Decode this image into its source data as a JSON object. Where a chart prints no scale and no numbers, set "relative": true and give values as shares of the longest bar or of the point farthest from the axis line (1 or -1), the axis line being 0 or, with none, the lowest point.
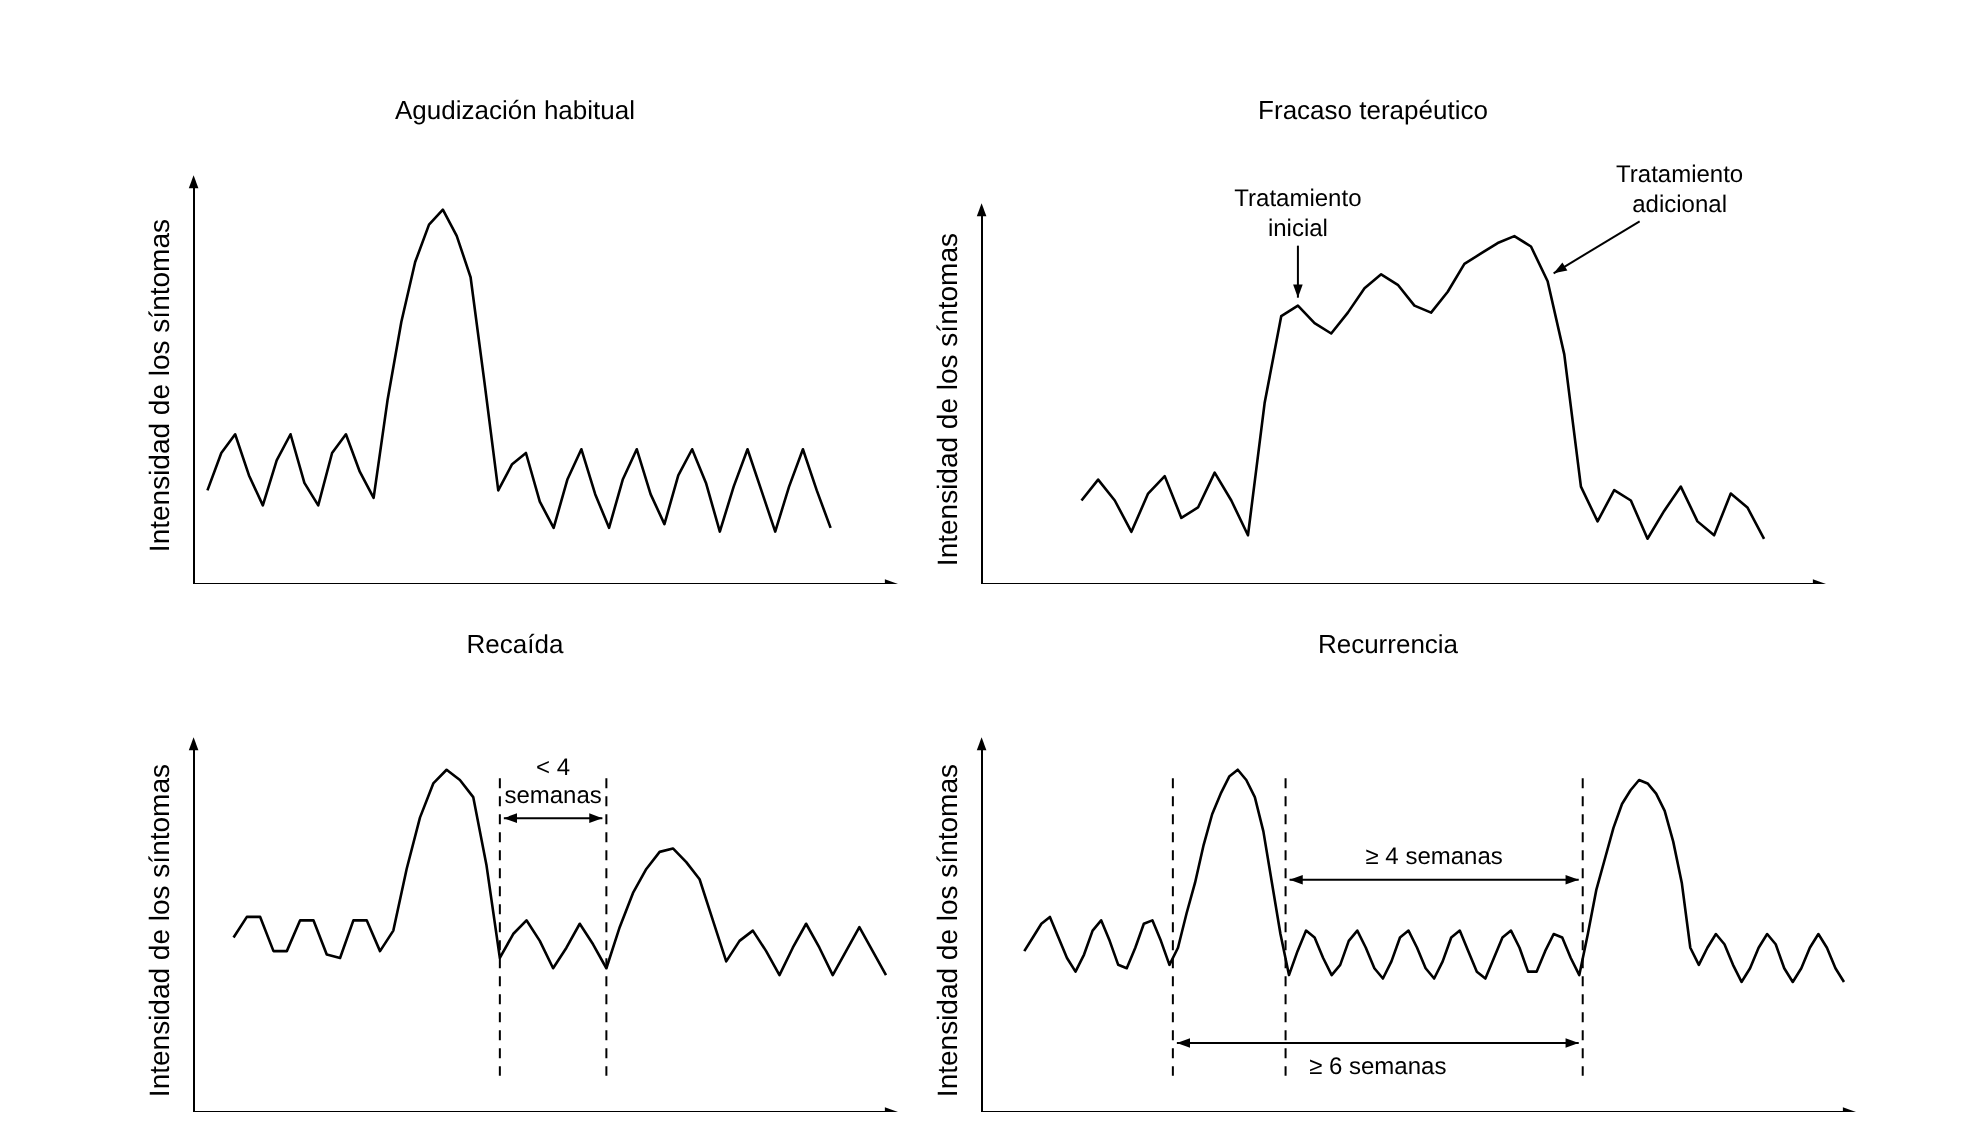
{
  "chart_data": [
    {
      "type": "line",
      "title": "Agudización habitual",
      "ylabel": "Intensidad de los síntomas",
      "relative": true,
      "tick_labels": false,
      "legend": false,
      "grid": false,
      "categories": [
        null,
        null,
        null,
        null,
        null,
        null,
        null,
        null,
        null,
        null,
        null,
        null,
        null,
        null,
        null,
        null,
        null,
        null,
        null,
        null,
        null,
        null,
        null,
        null,
        null,
        null,
        null,
        null,
        null,
        null,
        null,
        null,
        null,
        null,
        null,
        null,
        null,
        null,
        null,
        null,
        null,
        null,
        null,
        null,
        null,
        null,
        null,
        null,
        null,
        null,
        null
      ],
      "series": [
        {
          "color": "#000000",
          "values": [
            null,
            0.25,
            0.35,
            0.4,
            0.29,
            0.21,
            0.33,
            0.4,
            0.27,
            0.21,
            0.35,
            0.4,
            0.3,
            0.23,
            0.49,
            0.7,
            0.86,
            0.96,
            1,
            0.93,
            0.82,
            0.54,
            0.25,
            0.32,
            0.35,
            0.22,
            0.15,
            0.28,
            0.36,
            0.24,
            0.15,
            0.28,
            0.36,
            0.24,
            0.16,
            0.29,
            0.36,
            0.27,
            0.14,
            0.26,
            0.36,
            0.25,
            0.14,
            0.26,
            0.36,
            0.25,
            0.15,
            null,
            null,
            null,
            null
          ]
        }
      ]
    },
    {
      "type": "line",
      "title": "Fracaso terapéutico",
      "ylabel": "Intensidad de los síntomas",
      "relative": true,
      "tick_labels": false,
      "legend": false,
      "grid": false,
      "categories": [
        null,
        null,
        null,
        null,
        null,
        null,
        null,
        null,
        null,
        null,
        null,
        null,
        null,
        null,
        null,
        null,
        null,
        null,
        null,
        null,
        null,
        null,
        null,
        null,
        null,
        null,
        null,
        null,
        null,
        null,
        null,
        null,
        null,
        null,
        null,
        null,
        null,
        null,
        null,
        null,
        null,
        null,
        null,
        null,
        null,
        null,
        null,
        null,
        null,
        null,
        null
      ],
      "series": [
        {
          "color": "#000000",
          "values": [
            null,
            null,
            null,
            null,
            null,
            null,
            0.24,
            0.3,
            0.24,
            0.15,
            0.26,
            0.31,
            0.19,
            0.22,
            0.32,
            0.24,
            0.14,
            0.52,
            0.77,
            0.8,
            0.75,
            0.72,
            0.78,
            0.85,
            0.89,
            0.86,
            0.8,
            0.78,
            0.84,
            0.92,
            0.95,
            0.98,
            1,
            0.97,
            0.87,
            0.66,
            0.28,
            0.18,
            0.27,
            0.24,
            0.13,
            0.21,
            0.28,
            0.18,
            0.14,
            0.26,
            0.22,
            0.13,
            null,
            null,
            null
          ]
        }
      ],
      "annotations": [
        "Tratamiento inicial",
        "Tratamiento adicional"
      ]
    },
    {
      "type": "line",
      "title": "Recaída",
      "ylabel": "Intensidad de los síntomas",
      "relative": true,
      "tick_labels": false,
      "legend": false,
      "grid": false,
      "categories": [
        null,
        null,
        null,
        null,
        null,
        null,
        null,
        null,
        null,
        null,
        null,
        null,
        null,
        null,
        null,
        null,
        null,
        null,
        null,
        null,
        null,
        null,
        null,
        null,
        null,
        null,
        null,
        null,
        null,
        null,
        null,
        null,
        null,
        null,
        null,
        null,
        null,
        null,
        null,
        null,
        null,
        null,
        null,
        null,
        null,
        null,
        null,
        null,
        null,
        null,
        null,
        null,
        null
      ],
      "series": [
        {
          "color": "#000000",
          "values": [
            null,
            null,
            null,
            0.51,
            0.57,
            0.57,
            0.47,
            0.47,
            0.56,
            0.56,
            0.46,
            0.45,
            0.56,
            0.56,
            0.47,
            0.53,
            0.71,
            0.86,
            0.96,
            1,
            0.97,
            0.92,
            0.72,
            0.45,
            0.52,
            0.56,
            0.5,
            0.42,
            0.48,
            0.55,
            0.49,
            0.42,
            0.54,
            0.64,
            0.71,
            0.76,
            0.77,
            0.73,
            0.68,
            0.56,
            0.44,
            0.5,
            0.53,
            0.47,
            0.4,
            0.48,
            0.55,
            0.48,
            0.4,
            0.47,
            0.54,
            0.47,
            0.4
          ]
        }
      ],
      "annotations": [
        "< 4 semanas"
      ]
    },
    {
      "type": "line",
      "title": "Recurrencia",
      "ylabel": "Intensidad de los síntomas",
      "relative": true,
      "tick_labels": false,
      "legend": false,
      "grid": false,
      "categories": [
        null,
        null,
        null,
        null,
        null,
        null,
        null,
        null,
        null,
        null,
        null,
        null,
        null,
        null,
        null,
        null,
        null,
        null,
        null,
        null,
        null,
        null,
        null,
        null,
        null,
        null,
        null,
        null,
        null,
        null,
        null,
        null,
        null,
        null,
        null,
        null,
        null,
        null,
        null,
        null,
        null,
        null,
        null,
        null,
        null,
        null,
        null,
        null,
        null,
        null,
        null,
        null,
        null,
        null,
        null,
        null,
        null,
        null,
        null,
        null,
        null,
        null,
        null,
        null,
        null,
        null,
        null,
        null,
        null,
        null,
        null,
        null,
        null,
        null,
        null,
        null,
        null,
        null,
        null,
        null,
        null,
        null,
        null,
        null,
        null,
        null,
        null,
        null,
        null,
        null,
        null,
        null,
        null,
        null,
        null,
        null,
        null,
        null,
        null,
        null,
        null,
        null
      ],
      "series": [
        {
          "color": "#000000",
          "values": [
            null,
            null,
            null,
            null,
            null,
            0.47,
            0.51,
            0.55,
            0.57,
            0.51,
            0.45,
            0.41,
            0.46,
            0.53,
            0.56,
            0.5,
            0.43,
            0.42,
            0.48,
            0.55,
            0.56,
            0.5,
            0.43,
            0.48,
            0.58,
            0.67,
            0.78,
            0.87,
            0.93,
            0.98,
            1,
            0.97,
            0.92,
            0.82,
            0.67,
            0.52,
            0.4,
            0.47,
            0.53,
            0.51,
            0.45,
            0.4,
            0.43,
            0.5,
            0.53,
            0.48,
            0.42,
            0.39,
            0.44,
            0.51,
            0.53,
            0.48,
            0.42,
            0.39,
            0.44,
            0.51,
            0.53,
            0.47,
            0.41,
            0.39,
            0.45,
            0.51,
            0.53,
            0.48,
            0.41,
            0.41,
            0.47,
            0.52,
            0.51,
            0.45,
            0.4,
            0.52,
            0.65,
            0.74,
            0.83,
            0.9,
            0.94,
            0.97,
            0.96,
            0.93,
            0.88,
            0.79,
            0.67,
            0.48,
            0.43,
            0.48,
            0.52,
            0.49,
            0.43,
            0.38,
            0.42,
            0.48,
            0.52,
            0.49,
            0.42,
            0.38,
            0.42,
            0.48,
            0.52,
            0.48,
            0.42,
            0.38
          ]
        }
      ],
      "annotations": [
        "≥ 4 semanas",
        "≥ 6 semanas"
      ]
    }
  ]
}
